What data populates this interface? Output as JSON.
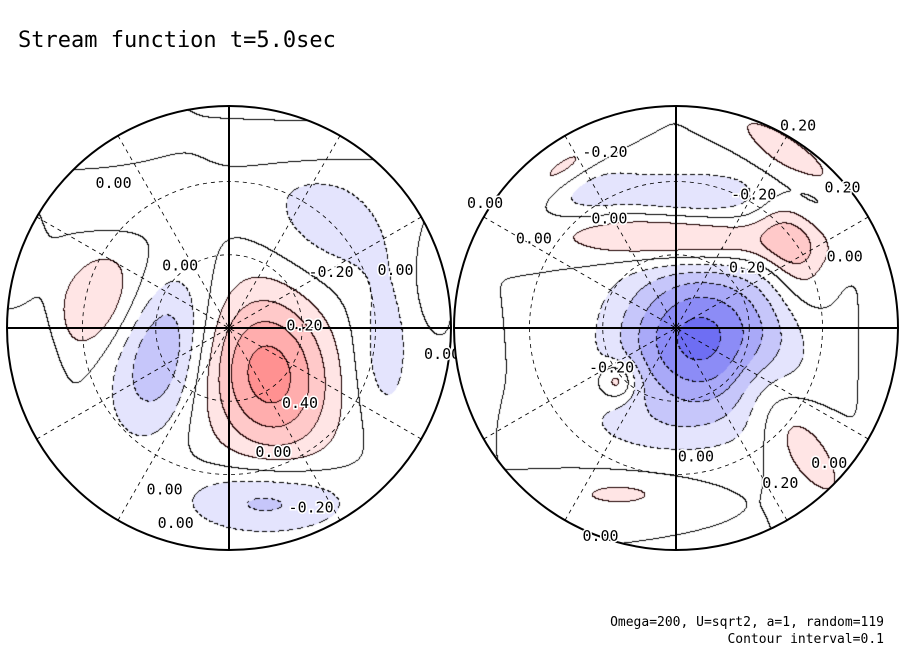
{
  "chart_data": {
    "type": "heatmap",
    "title": "Stream function t=5.0sec",
    "footnote_lines": [
      "Omega=200, U=sqrt2, a=1, random=119",
      "Contour interval=0.1"
    ],
    "contour_interval": 0.1,
    "colors": {
      "positive": "#ff5050",
      "negative": "#4848f0",
      "zero": "#ffffff",
      "line": "#000000"
    },
    "panels": [
      {
        "name": "left hemisphere",
        "features": [
          {
            "sign": "positive",
            "peak": 0.45,
            "u": 0.18,
            "v": 0.21,
            "sx": 0.2,
            "sy": 0.27,
            "rot": -0.2
          },
          {
            "sign": "negative",
            "peak": -0.3,
            "u": -0.3,
            "v": 0.12,
            "sx": 0.14,
            "sy": 0.26,
            "rot": 0.3
          },
          {
            "sign": "negative",
            "peak": -0.25,
            "u": 0.18,
            "v": 0.78,
            "sx": 0.26,
            "sy": 0.11,
            "rot": 0.0
          },
          {
            "sign": "negative",
            "peak": -0.15,
            "u": 0.45,
            "v": -0.48,
            "sx": 0.25,
            "sy": 0.18,
            "rot": 0.6
          },
          {
            "sign": "negative",
            "peak": -0.15,
            "u": 0.7,
            "v": 0.12,
            "sx": 0.1,
            "sy": 0.25,
            "rot": 0.0
          },
          {
            "sign": "negative",
            "peak": -0.1,
            "u": -0.42,
            "v": -0.6,
            "sx": 0.18,
            "sy": 0.1,
            "rot": -0.3
          },
          {
            "sign": "positive",
            "peak": 0.2,
            "u": -0.6,
            "v": -0.12,
            "sx": 0.12,
            "sy": 0.18,
            "rot": 0.5
          },
          {
            "sign": "positive",
            "peak": 0.08,
            "u": 0.3,
            "v": -0.8,
            "sx": 0.25,
            "sy": 0.07,
            "rot": 0.0
          },
          {
            "sign": "positive",
            "peak": 0.08,
            "u": -0.48,
            "v": -0.82,
            "sx": 0.14,
            "sy": 0.07,
            "rot": 0.0
          },
          {
            "sign": "negative",
            "peak": -0.1,
            "u": -0.85,
            "v": 0.15,
            "sx": 0.07,
            "sy": 0.2,
            "rot": 0.0
          },
          {
            "sign": "positive",
            "peak": 0.08,
            "u": 0.9,
            "v": -0.25,
            "sx": 0.05,
            "sy": 0.15,
            "rot": 0.0
          },
          {
            "sign": "positive",
            "peak": 0.06,
            "u": -0.92,
            "v": -0.3,
            "sx": 0.05,
            "sy": 0.12,
            "rot": 0.0
          }
        ],
        "contour_labels": [
          {
            "text": "0.00",
            "u": -0.52,
            "v": -0.65
          },
          {
            "text": "0.00",
            "u": -0.22,
            "v": -0.28
          },
          {
            "text": "-0.20",
            "u": 0.46,
            "v": -0.25
          },
          {
            "text": "0.00",
            "u": 0.75,
            "v": -0.26
          },
          {
            "text": "0.20",
            "u": 0.34,
            "v": -0.01
          },
          {
            "text": "0.00",
            "u": 0.96,
            "v": 0.12
          },
          {
            "text": "0.40",
            "u": 0.32,
            "v": 0.34
          },
          {
            "text": "0.00",
            "u": 0.2,
            "v": 0.56
          },
          {
            "text": "0.00",
            "u": -0.29,
            "v": 0.73
          },
          {
            "text": "0.00",
            "u": -0.24,
            "v": 0.88
          },
          {
            "text": "-0.20",
            "u": 0.37,
            "v": 0.81
          }
        ]
      },
      {
        "name": "right hemisphere",
        "features": [
          {
            "sign": "negative",
            "peak": -0.55,
            "u": 0.12,
            "v": 0.05,
            "sx": 0.26,
            "sy": 0.24,
            "rot": 0.0
          },
          {
            "sign": "positive",
            "peak": 0.28,
            "u": 0.03,
            "v": -0.4,
            "sx": 0.4,
            "sy": 0.08,
            "rot": 0.05
          },
          {
            "sign": "positive",
            "peak": 0.2,
            "u": 0.52,
            "v": -0.36,
            "sx": 0.09,
            "sy": 0.2,
            "rot": -0.3
          },
          {
            "sign": "negative",
            "peak": -0.18,
            "u": 0.05,
            "v": -0.6,
            "sx": 0.36,
            "sy": 0.08,
            "rot": 0.0
          },
          {
            "sign": "positive",
            "peak": 0.25,
            "u": -0.26,
            "v": 0.24,
            "sx": 0.06,
            "sy": 0.06,
            "rot": 0.0
          },
          {
            "sign": "positive",
            "peak": 0.12,
            "u": -0.25,
            "v": 0.75,
            "sx": 0.22,
            "sy": 0.06,
            "rot": 0.0
          },
          {
            "sign": "positive",
            "peak": 0.15,
            "u": 0.55,
            "v": 0.5,
            "sx": 0.1,
            "sy": 0.3,
            "rot": -0.6
          },
          {
            "sign": "positive",
            "peak": 0.15,
            "u": 0.52,
            "v": -0.78,
            "sx": 0.25,
            "sy": 0.06,
            "rot": 0.6
          },
          {
            "sign": "positive",
            "peak": 0.15,
            "u": -0.52,
            "v": -0.7,
            "sx": 0.18,
            "sy": 0.06,
            "rot": -0.6
          },
          {
            "sign": "negative",
            "peak": -0.08,
            "u": -0.4,
            "v": -0.6,
            "sx": 0.15,
            "sy": 0.1,
            "rot": -0.5
          },
          {
            "sign": "negative",
            "peak": -0.08,
            "u": -0.15,
            "v": 0.45,
            "sx": 0.3,
            "sy": 0.1,
            "rot": 0.0
          },
          {
            "sign": "positive",
            "peak": 0.08,
            "u": 0.92,
            "v": 0.1,
            "sx": 0.05,
            "sy": 0.25,
            "rot": 0.0
          },
          {
            "sign": "positive",
            "peak": 0.08,
            "u": -0.9,
            "v": 0.25,
            "sx": 0.05,
            "sy": 0.2,
            "rot": 0.0
          }
        ],
        "contour_labels": [
          {
            "text": "-0.20",
            "u": -0.32,
            "v": -0.79
          },
          {
            "text": "0.20",
            "u": 0.55,
            "v": -0.91
          },
          {
            "text": "0.00",
            "u": -0.86,
            "v": -0.56
          },
          {
            "text": "0.00",
            "u": -0.64,
            "v": -0.4
          },
          {
            "text": "0.00",
            "u": -0.3,
            "v": -0.49
          },
          {
            "text": "-0.20",
            "u": 0.35,
            "v": -0.6
          },
          {
            "text": "0.20",
            "u": 0.75,
            "v": -0.63
          },
          {
            "text": "0.00",
            "u": 0.76,
            "v": -0.32
          },
          {
            "text": "0.20",
            "u": 0.32,
            "v": -0.27
          },
          {
            "text": "-0.20",
            "u": -0.29,
            "v": 0.18
          },
          {
            "text": "0.00",
            "u": 0.09,
            "v": 0.58
          },
          {
            "text": "0.00",
            "u": 0.69,
            "v": 0.61
          },
          {
            "text": "0.20",
            "u": 0.47,
            "v": 0.7
          },
          {
            "text": "0.00",
            "u": -0.34,
            "v": 0.94
          }
        ]
      }
    ]
  }
}
